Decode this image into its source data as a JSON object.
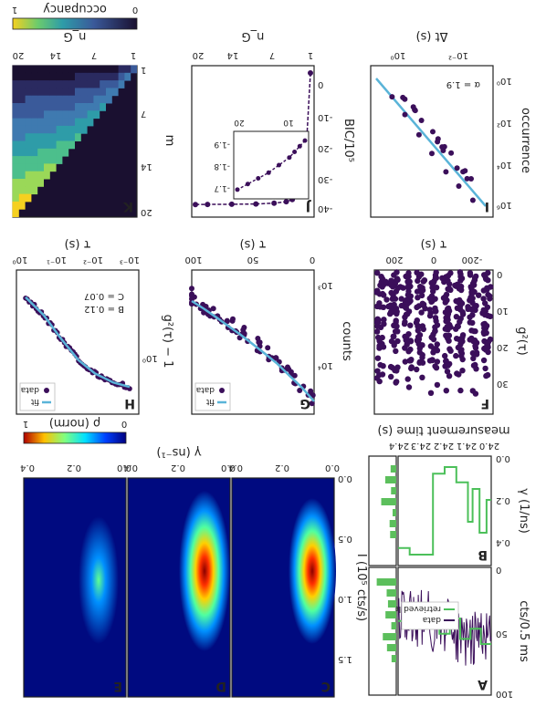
{
  "figure": {
    "orientation": "rotated-180",
    "panel_letters": [
      "A",
      "B",
      "C",
      "D",
      "E",
      "F",
      "G",
      "H",
      "I",
      "J",
      "K"
    ]
  },
  "colors": {
    "data": "#3b0f5a",
    "fit": "#5ab4d8",
    "levels": "#4cc05a",
    "hist": "#5cbf5c"
  },
  "panelA": {
    "letter": "A",
    "ylabel": "cts/0.5 ms",
    "yticks": [
      "0",
      "50",
      "100"
    ],
    "legend": [
      "data",
      "retrieved levels"
    ]
  },
  "panelB": {
    "letter": "B",
    "ylabel": "γ (1/ns)",
    "yticks": [
      "0.0",
      "0.2",
      "0.4"
    ],
    "xticks": [
      "24.0",
      "24.1",
      "24.2",
      "24.3",
      "24.4"
    ],
    "xlabel": "measurement time (s)"
  },
  "panelsCDE": {
    "letters": [
      "C",
      "D",
      "E"
    ],
    "ylabel": "I (10⁵ cts/s)",
    "yticks": [
      "0.0",
      "0.5",
      "1.0",
      "1.5"
    ],
    "xticks": [
      "0.0",
      "0.2",
      "0.4"
    ],
    "xlabel": "γ (ns⁻¹)",
    "cbar_label": "ρ (norm)",
    "cbar_ticks": [
      "0",
      "1"
    ]
  },
  "panelF": {
    "letter": "F",
    "ylabel": "g²(τ)",
    "yticks": [
      "0",
      "10",
      "20",
      "30"
    ],
    "xticks": [
      "-200",
      "0",
      "200"
    ],
    "xlabel": "τ (s)"
  },
  "panelG": {
    "letter": "G",
    "ylabel": "counts",
    "yticks": [
      "10³",
      "10⁴"
    ],
    "xticks": [
      "0",
      "50",
      "100"
    ],
    "xlabel": "τ (s)",
    "legend": [
      "fit",
      "data"
    ]
  },
  "panelH": {
    "letter": "H",
    "ylabel": "g²(τ) − 1",
    "yticks": [
      "10⁰"
    ],
    "xticks": [
      "10⁻³",
      "10⁻²",
      "10⁻¹",
      "10⁰"
    ],
    "xlabel": "τ (s)",
    "legend": [
      "fit",
      "data"
    ],
    "annot_B": "B = 0.12",
    "annot_C": "C = 0.07"
  },
  "panelI": {
    "letter": "I",
    "ylabel": "occurrence",
    "yticks": [
      "10⁰",
      "10²",
      "10⁴",
      "10⁶"
    ],
    "xticks": [
      "10⁻²",
      "10⁰"
    ],
    "xlabel": "Δt (s)",
    "annot": "α = 1.9"
  },
  "panelJ": {
    "letter": "J",
    "ylabel": "BIC/10⁵",
    "yticks": [
      "-40",
      "-30",
      "-20",
      "-10",
      "0"
    ],
    "xticks": [
      "1",
      "7",
      "14",
      "20"
    ],
    "xlabel": "n_G",
    "inset_yticks": [
      "-1.7",
      "-1.8",
      "-1.9"
    ],
    "inset_xticks": [
      "10",
      "20"
    ]
  },
  "panelK": {
    "letter": "K",
    "ylabel": "m",
    "yticks": [
      "1",
      "7",
      "14",
      "20"
    ],
    "xticks": [
      "1",
      "7",
      "14",
      "20"
    ],
    "xlabel": "n_G",
    "cbar_label": "occupancy",
    "cbar_ticks": [
      "0",
      "1"
    ]
  },
  "chart_data": [
    {
      "type": "line",
      "panel": "A",
      "series": [
        {
          "name": "data"
        },
        {
          "name": "retrieved levels"
        }
      ],
      "ylim": [
        0,
        100
      ]
    },
    {
      "type": "line",
      "panel": "B",
      "x": [
        24.0,
        24.02,
        24.05,
        24.08,
        24.1,
        24.15,
        24.2,
        24.25,
        24.35,
        24.4
      ],
      "values": [
        0.2,
        0.35,
        0.15,
        0.3,
        0.12,
        0.05,
        0.08,
        0.45,
        0.42,
        0.42
      ],
      "ylim": [
        0,
        0.5
      ],
      "xlim": [
        24.0,
        24.4
      ]
    },
    {
      "type": "heatmap",
      "panel": "C",
      "peak": {
        "gamma": 0.15,
        "I": 0.55
      }
    },
    {
      "type": "heatmap",
      "panel": "D",
      "peak": {
        "gamma": 0.15,
        "I": 0.55
      }
    },
    {
      "type": "heatmap",
      "panel": "E",
      "peak": {
        "gamma": 0.18,
        "I": 0.55
      }
    },
    {
      "type": "scatter",
      "panel": "F",
      "x": [
        -270,
        -200,
        -130,
        -70,
        0,
        70,
        130,
        200,
        270
      ],
      "values": [
        35,
        35,
        35,
        35,
        37,
        35,
        35,
        35,
        35
      ],
      "ylim": [
        0,
        38
      ],
      "xlim": [
        -300,
        300
      ]
    },
    {
      "type": "scatter",
      "panel": "G",
      "series": [
        {
          "name": "data"
        },
        {
          "name": "fit"
        }
      ],
      "x": [
        0,
        10,
        20,
        30,
        40,
        50,
        60,
        70,
        80,
        90,
        100
      ],
      "values": [
        15000,
        11000,
        8500,
        6500,
        5200,
        4200,
        3400,
        2800,
        2300,
        1900,
        1600
      ],
      "xlim": [
        0,
        100
      ]
    },
    {
      "type": "scatter",
      "panel": "H",
      "series": [
        {
          "name": "data"
        },
        {
          "name": "fit"
        }
      ],
      "x": [
        0.001,
        0.003,
        0.01,
        0.03,
        0.1,
        0.3,
        1
      ],
      "values": [
        1.3,
        1.25,
        1.15,
        1.0,
        0.75,
        0.5,
        0.3
      ]
    },
    {
      "type": "scatter",
      "panel": "I",
      "x": [
        0.003,
        0.01,
        0.03,
        0.1,
        0.3,
        1,
        3
      ],
      "values": [
        1000000,
        200000,
        40000,
        5000,
        600,
        60,
        8
      ]
    },
    {
      "type": "line",
      "panel": "J",
      "x": [
        1,
        2,
        3,
        4,
        5,
        7,
        10,
        14,
        18,
        20
      ],
      "values": [
        -47,
        -10,
        -5,
        -3.5,
        -2.8,
        -2.3,
        -2.0,
        -1.9,
        -1.85,
        -1.82
      ],
      "ylim": [
        -47,
        1
      ]
    },
    {
      "type": "heatmap",
      "panel": "K",
      "xlim": [
        1,
        20
      ],
      "ylim": [
        1,
        20
      ]
    }
  ]
}
